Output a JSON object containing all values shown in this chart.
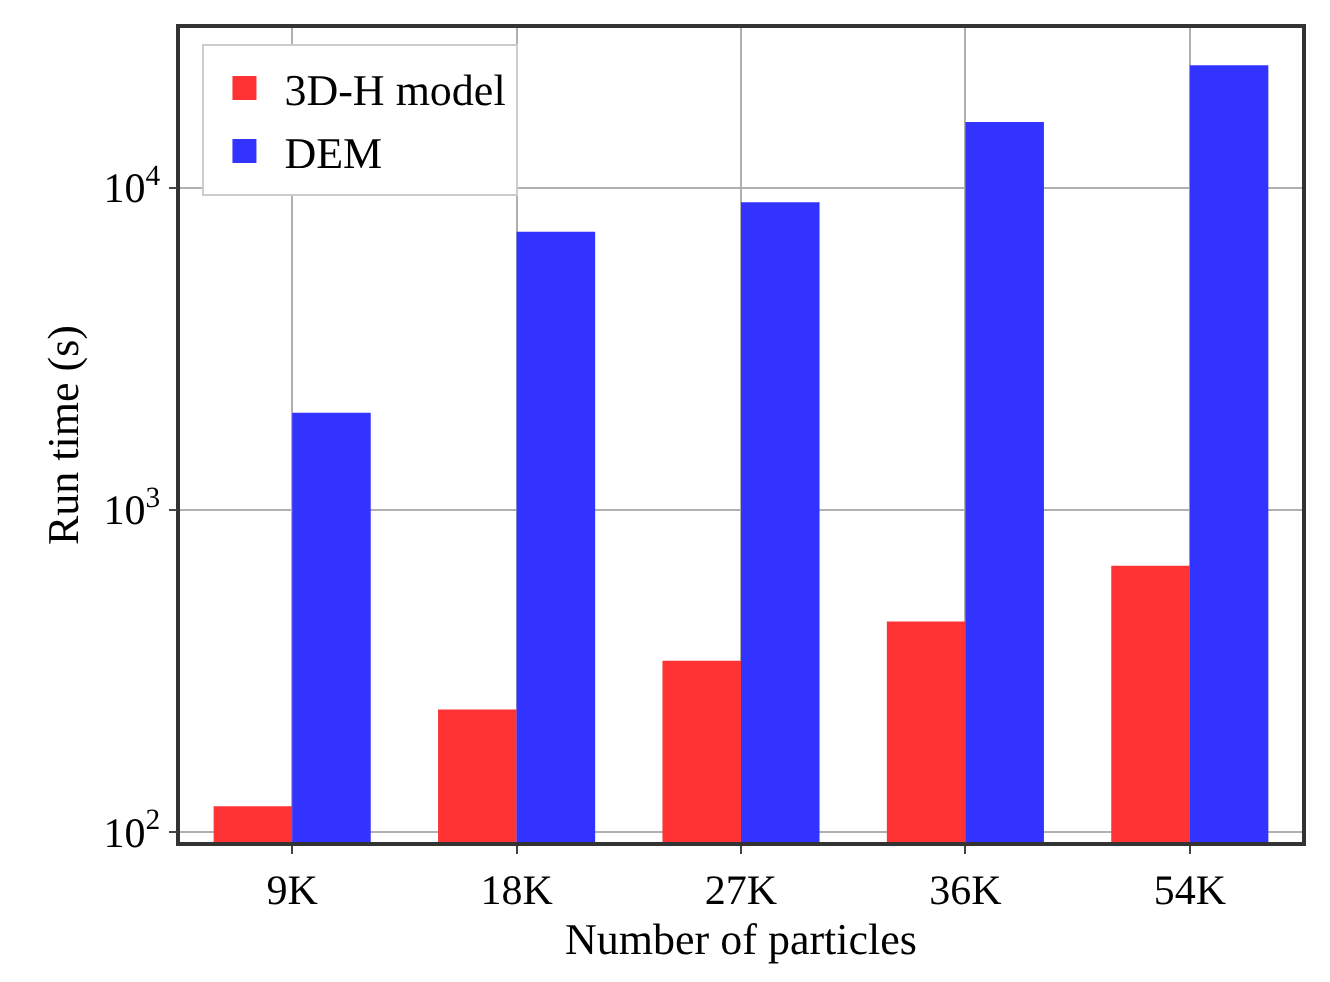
{
  "chart_data": {
    "type": "bar",
    "xlabel": "Number of particles",
    "ylabel": "Run time (s)",
    "categories": [
      "9K",
      "18K",
      "27K",
      "36K",
      "54K"
    ],
    "series": [
      {
        "name": "3D-H model",
        "color": "#ff3333",
        "values": [
          120,
          240,
          340,
          450,
          670
        ]
      },
      {
        "name": "DEM",
        "color": "#3333ff",
        "values": [
          2000,
          7300,
          9000,
          16000,
          24000
        ]
      }
    ],
    "log": "y",
    "ylim": [
      93,
      31300
    ],
    "yticks": [
      {
        "value": 100,
        "label": "10$^{2}$"
      },
      {
        "value": 1000,
        "label": "10$^{3}$"
      },
      {
        "value": 10000,
        "label": "10$^{4}$"
      }
    ],
    "grid": true,
    "legend": "top left"
  }
}
